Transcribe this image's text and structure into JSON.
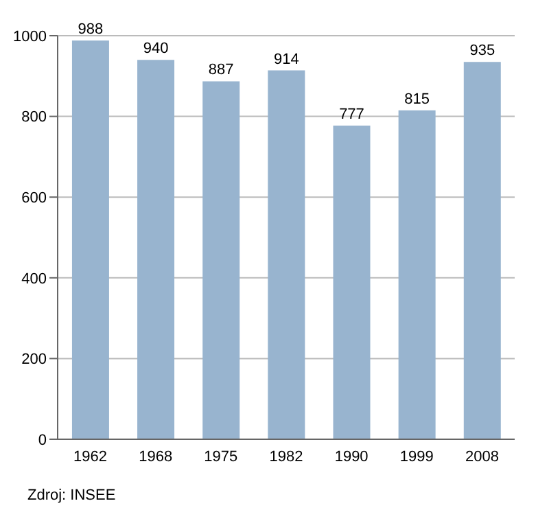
{
  "chart_data": {
    "type": "bar",
    "categories": [
      "1962",
      "1968",
      "1975",
      "1982",
      "1990",
      "1999",
      "2008"
    ],
    "values": [
      988,
      940,
      887,
      914,
      777,
      815,
      935
    ],
    "color": "#98b4cf",
    "ylim": [
      0,
      1000
    ],
    "yticks": [
      0,
      200,
      400,
      600,
      800,
      1000
    ],
    "grid": "y",
    "data_labels": true,
    "annotations": [
      "Zdroj: INSEE"
    ]
  }
}
